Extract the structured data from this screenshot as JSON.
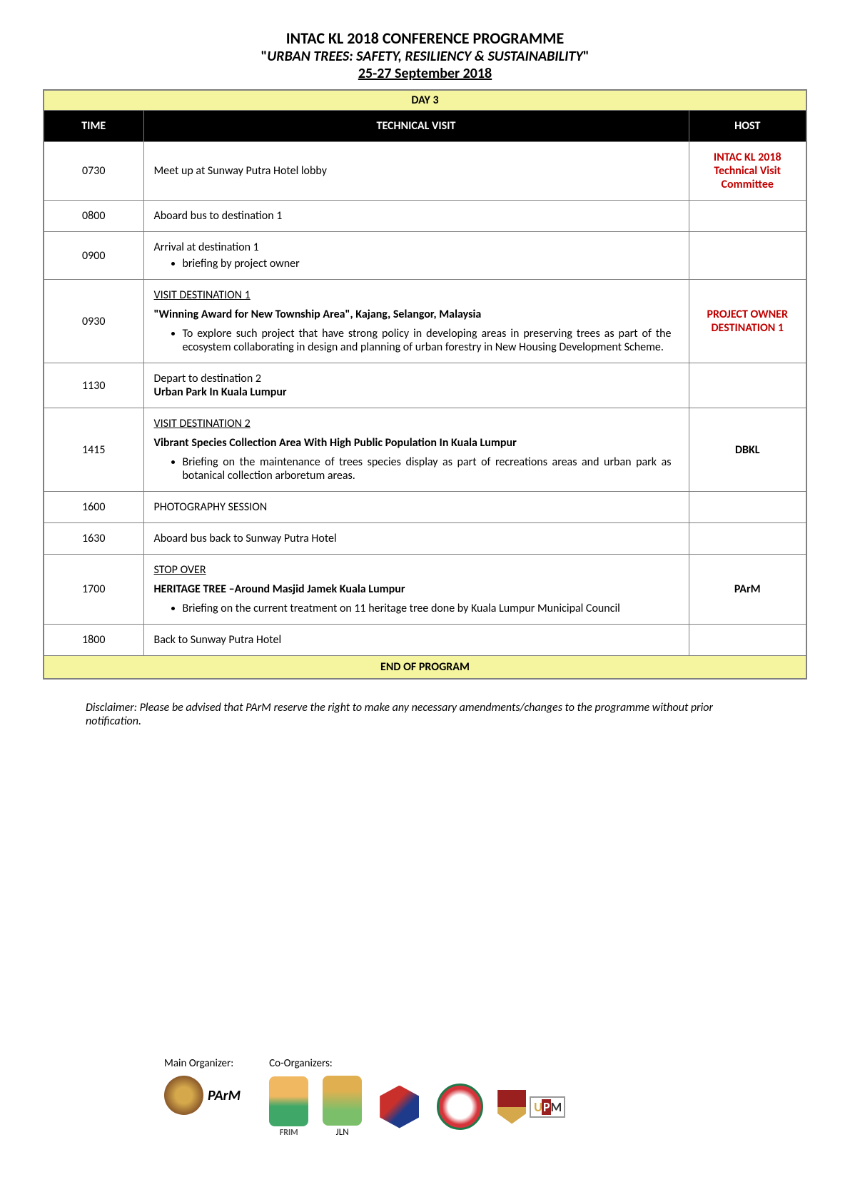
{
  "header": {
    "title": "INTAC KL 2018 CONFERENCE PROGRAMME",
    "subtitle": "URBAN TREES: SAFETY, RESILIENCY & SUSTAINABILITY",
    "dates": "25-27 September 2018",
    "day_label": "DAY 3"
  },
  "columns": {
    "time": "TIME",
    "visit": "TECHNICAL VISIT",
    "host": "HOST"
  },
  "rows": [
    {
      "time": "0730",
      "visit_plain": "Meet up at Sunway Putra Hotel lobby",
      "host": "INTAC KL 2018 Technical Visit Committee",
      "host_class": "host-red"
    },
    {
      "time": "0800",
      "visit_plain": "Aboard bus to destination 1",
      "host": ""
    },
    {
      "time": "0900",
      "visit_plain": "Arrival at destination 1",
      "bullets": [
        "briefing by project owner"
      ],
      "host": ""
    },
    {
      "time": "0930",
      "visit_title": "VISIT  DESTINATION  1",
      "visit_bold": "\"Winning Award for New Township Area\", Kajang, Selangor, Malaysia",
      "bullets": [
        "To explore such project that have strong policy in developing areas in preserving trees as part of the ecosystem collaborating in design and planning of urban forestry in New Housing Development Scheme."
      ],
      "host": "PROJECT OWNER DESTINATION 1",
      "host_class": "host-red"
    },
    {
      "time": "1130",
      "visit_plain": "Depart to destination 2",
      "visit_bold_after": "Urban Park In Kuala Lumpur",
      "host": ""
    },
    {
      "time": "1415",
      "visit_title": "VISIT  DESTINATION 2",
      "visit_bold": "Vibrant Species Collection Area With High Public Population In Kuala Lumpur",
      "bullets": [
        "Briefing on the maintenance of trees species display as part of recreations areas and urban park as botanical collection arboretum areas."
      ],
      "bullet_justify": true,
      "host": "DBKL"
    },
    {
      "time": "1600",
      "visit_plain": "PHOTOGRAPHY SESSION",
      "host": ""
    },
    {
      "time": "1630",
      "visit_plain": "Aboard bus back to Sunway Putra Hotel",
      "host": ""
    },
    {
      "time": "1700",
      "visit_title": "STOP OVER",
      "visit_bold": "HERITAGE TREE –Around Masjid Jamek Kuala Lumpur",
      "bullets": [
        "Briefing on the current treatment on 11  heritage tree  done by Kuala Lumpur Municipal Council"
      ],
      "host": "PArM"
    },
    {
      "time": "1800",
      "visit_plain": "Back to Sunway Putra Hotel",
      "host": ""
    }
  ],
  "end_label": "END OF PROGRAM",
  "disclaimer": "Disclaimer: Please be advised that PArM reserve the right to make any necessary amendments/changes to the programme without prior notification.",
  "footer": {
    "main_label": "Main Organizer:",
    "co_label": "Co-Organizers:",
    "parm_text": "PArM",
    "frim_label": "FRIM",
    "jln_label": "JLN",
    "upm_u": "U",
    "upm_p": "P",
    "upm_m": "M"
  },
  "colors": {
    "yellow_bg": "#f5f5a0",
    "black_bg": "#000000",
    "border": "#7f7f7f",
    "host_red": "#c00000"
  }
}
